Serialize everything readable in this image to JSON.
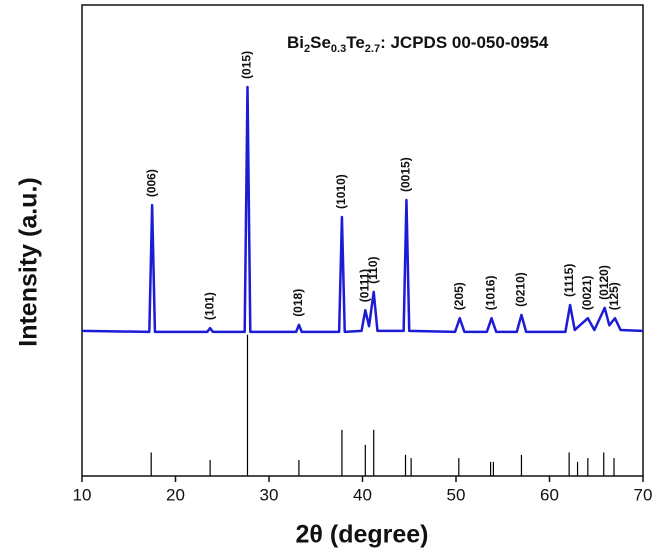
{
  "chart_data": {
    "type": "line",
    "title": [
      "Bi",
      "2",
      "Se",
      "0.3",
      "Te",
      "2.7",
      ": JCPDS 00-050-0954"
    ],
    "x_label": "2θ (degree)",
    "y_label": "Intensity (a.u.)",
    "xlim": [
      10,
      70
    ],
    "xticks": [
      10,
      20,
      30,
      40,
      50,
      60,
      70
    ],
    "ylim": [
      0,
      100
    ],
    "series": [
      {
        "color": "#1c1cd6",
        "x": [
          10,
          17.2,
          17.5,
          17.8,
          23.4,
          23.7,
          24.0,
          27.4,
          27.7,
          28.0,
          32.9,
          33.2,
          33.5,
          37.5,
          37.8,
          38.1,
          39.9,
          40.3,
          40.7,
          41.2,
          41.6,
          44.4,
          44.7,
          45.0,
          49.9,
          50.4,
          50.9,
          53.3,
          53.8,
          54.3,
          56.5,
          57.0,
          57.5,
          61.7,
          62.2,
          62.7,
          64.1,
          64.8,
          65.9,
          66.4,
          67.0,
          67.6,
          70
        ],
        "values": [
          30.8,
          30.6,
          57.5,
          30.6,
          30.6,
          31.4,
          30.6,
          30.6,
          82.6,
          30.6,
          30.6,
          32.1,
          30.6,
          30.6,
          55.0,
          30.6,
          30.8,
          35.2,
          31.8,
          39.1,
          30.8,
          30.8,
          58.6,
          30.8,
          30.6,
          33.5,
          30.6,
          30.6,
          33.5,
          30.6,
          30.6,
          34.2,
          30.6,
          30.6,
          36.3,
          31.0,
          33.5,
          31.0,
          35.7,
          32.0,
          33.5,
          31.0,
          30.8
        ]
      }
    ],
    "reference": {
      "color": "#000000",
      "x": [
        17.4,
        23.7,
        27.7,
        33.2,
        37.8,
        40.3,
        41.2,
        44.6,
        45.2,
        50.3,
        53.7,
        54.0,
        57.0,
        62.1,
        63.0,
        64.1,
        65.8,
        66.9
      ],
      "values": [
        5.0,
        3.4,
        30.0,
        3.4,
        9.8,
        6.6,
        9.8,
        4.5,
        3.8,
        3.8,
        3.0,
        3.0,
        4.5,
        5.0,
        3.0,
        3.8,
        5.0,
        3.8
      ]
    },
    "annotations": [
      {
        "text": "(006)",
        "x": 17.5,
        "y": 57.5
      },
      {
        "text": "(101)",
        "x": 23.7,
        "y": 31.4
      },
      {
        "text": "(015)",
        "x": 27.7,
        "y": 82.6
      },
      {
        "text": "(018)",
        "x": 33.2,
        "y": 32.1
      },
      {
        "text": "(1010)",
        "x": 37.8,
        "y": 55.0
      },
      {
        "text": "(0111)",
        "x": 40.3,
        "y": 35.2
      },
      {
        "text": "(110)",
        "x": 41.2,
        "y": 39.1
      },
      {
        "text": "(0015)",
        "x": 44.7,
        "y": 58.6
      },
      {
        "text": "(205)",
        "x": 50.4,
        "y": 33.5
      },
      {
        "text": "(1016)",
        "x": 53.8,
        "y": 33.5
      },
      {
        "text": "(0210)",
        "x": 57.0,
        "y": 34.2
      },
      {
        "text": "(1115)",
        "x": 62.2,
        "y": 36.3
      },
      {
        "text": "(0021)",
        "x": 64.1,
        "y": 33.5
      },
      {
        "text": "(0120)",
        "x": 65.9,
        "y": 35.7
      },
      {
        "text": "(125)",
        "x": 67.0,
        "y": 33.5
      }
    ]
  }
}
